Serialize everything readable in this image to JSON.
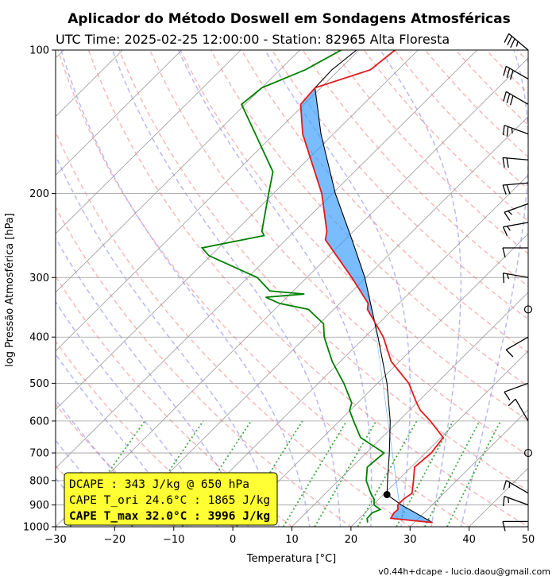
{
  "chart_data": {
    "type": "line",
    "title": "Aplicador do Método Doswell em Sondagens Atmosféricas",
    "subtitle": "UTC Time: 2025-02-25 12:00:00 - Station: 82965 Alta Floresta",
    "xlabel": "Temperatura [°C]",
    "ylabel": "log Pressão Atmosférica [hPa]",
    "xlim": [
      -30,
      50
    ],
    "ylim": [
      1000,
      100
    ],
    "y_scale": "log",
    "grid": true,
    "skew": true,
    "x_ticks": [
      "−30",
      "−20",
      "−10",
      "0",
      "10",
      "20",
      "30",
      "40",
      "50"
    ],
    "y_ticks": [
      {
        "p": 1000,
        "label": "1000"
      },
      {
        "p": 900,
        "label": "900"
      },
      {
        "p": 800,
        "label": "800"
      },
      {
        "p": 700,
        "label": "700"
      },
      {
        "p": 600,
        "label": "600"
      },
      {
        "p": 500,
        "label": "500"
      },
      {
        "p": 400,
        "label": "400"
      },
      {
        "p": 300,
        "label": "300"
      },
      {
        "p": 200,
        "label": "200"
      },
      {
        "p": 100,
        "label": "100"
      }
    ],
    "series": [
      {
        "kind": "temperature",
        "color": "#e41a1c",
        "points": [
          [
            980,
            33.1
          ],
          [
            960,
            25.3
          ],
          [
            935,
            24.9
          ],
          [
            920,
            25.0
          ],
          [
            900,
            24.2
          ],
          [
            875,
            24.2
          ],
          [
            850,
            24.6
          ],
          [
            800,
            22.7
          ],
          [
            750,
            20.6
          ],
          [
            700,
            21.0
          ],
          [
            650,
            20.4
          ],
          [
            600,
            15.4
          ],
          [
            570,
            11.9
          ],
          [
            550,
            10.0
          ],
          [
            500,
            5.3
          ],
          [
            450,
            -1.4
          ],
          [
            400,
            -6.9
          ],
          [
            350,
            -14.3
          ],
          [
            340,
            -15.2
          ],
          [
            300,
            -22.4
          ],
          [
            250,
            -33.3
          ],
          [
            240,
            -34.5
          ],
          [
            200,
            -41.8
          ],
          [
            150,
            -55.2
          ],
          [
            130,
            -60.6
          ],
          [
            120,
            -61.0
          ],
          [
            110,
            -54.7
          ],
          [
            100,
            -53.9
          ]
        ]
      },
      {
        "kind": "dewpoint",
        "color": "#008000",
        "points": [
          [
            980,
            22.1
          ],
          [
            960,
            21.3
          ],
          [
            935,
            21.2
          ],
          [
            920,
            22.0
          ],
          [
            900,
            20.2
          ],
          [
            875,
            19.2
          ],
          [
            850,
            17.6
          ],
          [
            800,
            14.7
          ],
          [
            750,
            12.6
          ],
          [
            700,
            13.0
          ],
          [
            650,
            6.4
          ],
          [
            600,
            2.4
          ],
          [
            570,
            -0.1
          ],
          [
            550,
            -1.0
          ],
          [
            500,
            -5.7
          ],
          [
            450,
            -11.4
          ],
          [
            400,
            -16.9
          ],
          [
            375,
            -19.3
          ],
          [
            350,
            -24.3
          ],
          [
            340,
            -30.2
          ],
          [
            330,
            -33.6
          ],
          [
            325,
            -27.6
          ],
          [
            320,
            -34.0
          ],
          [
            300,
            -38.4
          ],
          [
            270,
            -50.3
          ],
          [
            260,
            -52.8
          ],
          [
            245,
            -44.4
          ],
          [
            240,
            -45.5
          ],
          [
            200,
            -50.8
          ],
          [
            180,
            -53.8
          ],
          [
            150,
            -63.2
          ],
          [
            130,
            -70.6
          ],
          [
            120,
            -70.0
          ],
          [
            110,
            -65.7
          ],
          [
            100,
            -63.0
          ]
        ]
      },
      {
        "kind": "parcel-profile",
        "color": "#000000",
        "points": [
          [
            980,
            33.1
          ],
          [
            900,
            24.8
          ],
          [
            856,
            20.6
          ],
          [
            800,
            18.3
          ],
          [
            700,
            13.9
          ],
          [
            600,
            8.6
          ],
          [
            500,
            1.6
          ],
          [
            400,
            -7.8
          ],
          [
            300,
            -20.2
          ],
          [
            250,
            -28.8
          ],
          [
            200,
            -39.5
          ],
          [
            150,
            -52.1
          ],
          [
            120,
            -61.0
          ],
          [
            110,
            -61.2
          ],
          [
            100,
            -60.4
          ]
        ]
      }
    ],
    "cape_area": {
      "color": "#3399ff",
      "opacity": 0.65
    },
    "lcl": {
      "p": 856,
      "t": 20.6
    },
    "barbs": {
      "color": "#000000",
      "levels": [
        {
          "p": 975,
          "speed": 10,
          "dir": 270
        },
        {
          "p": 900,
          "speed": 15,
          "dir": 290
        },
        {
          "p": 850,
          "speed": 15,
          "dir": 300
        },
        {
          "p": 700,
          "speed": 0,
          "dir": 0
        },
        {
          "p": 600,
          "speed": 10,
          "dir": 330
        },
        {
          "p": 500,
          "speed": 10,
          "dir": 250
        },
        {
          "p": 400,
          "speed": 10,
          "dir": 240
        },
        {
          "p": 350,
          "speed": 0,
          "dir": 0
        },
        {
          "p": 300,
          "speed": 15,
          "dir": 280
        },
        {
          "p": 260,
          "speed": 10,
          "dir": 270
        },
        {
          "p": 230,
          "speed": 15,
          "dir": 260
        },
        {
          "p": 210,
          "speed": 15,
          "dir": 250
        },
        {
          "p": 190,
          "speed": 20,
          "dir": 265
        },
        {
          "p": 170,
          "speed": 20,
          "dir": 275
        },
        {
          "p": 150,
          "speed": 25,
          "dir": 290
        },
        {
          "p": 130,
          "speed": 30,
          "dir": 300
        },
        {
          "p": 115,
          "speed": 30,
          "dir": 300
        },
        {
          "p": 100,
          "speed": 35,
          "dir": 310
        }
      ]
    },
    "annotation": {
      "lines": [
        {
          "text": "DCAPE : 343 J/kg @ 650 hPa",
          "bold": false
        },
        {
          "text": "CAPE T_ori 24.6°C : 1865 J/kg",
          "bold": false
        },
        {
          "text": "CAPE T_max 32.0°C : 3996 J/kg",
          "bold": true
        }
      ],
      "background": "#ffff33"
    }
  },
  "footer": "v0.44h+dcape  -  lucio.daou@gmail.com"
}
